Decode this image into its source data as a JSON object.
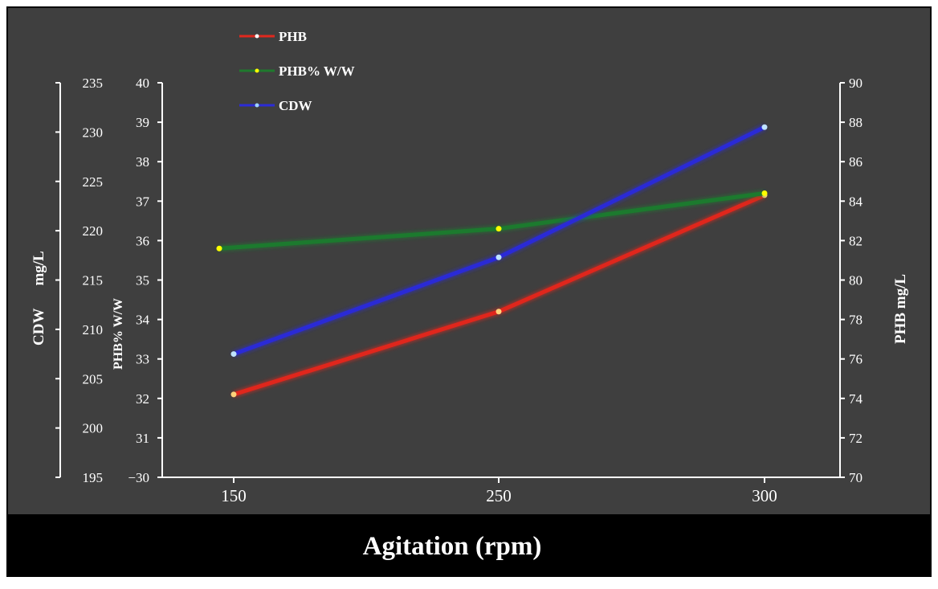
{
  "chart_data": {
    "type": "line",
    "xlabel": "Agitation (rpm)",
    "categories": [
      "150",
      "250",
      "300"
    ],
    "axes": {
      "cdw": {
        "label_parts": [
          "CDW",
          "mg/L"
        ],
        "ylim": [
          195,
          235
        ],
        "ticks": [
          "195",
          "200",
          "205",
          "210",
          "215",
          "220",
          "225",
          "230",
          "235"
        ]
      },
      "phb_ww": {
        "label": "PHB% W/W",
        "ylim": [
          30,
          40
        ],
        "ticks": [
          "−30",
          "31",
          "32",
          "33",
          "34",
          "35",
          "36",
          "37",
          "38",
          "39",
          "40"
        ]
      },
      "phb": {
        "label": "PHB  mg/L",
        "ylim": [
          70,
          90
        ],
        "ticks": [
          "70",
          "72",
          "74",
          "76",
          "78",
          "80",
          "82",
          "84",
          "86",
          "88",
          "90"
        ]
      }
    },
    "series": [
      {
        "name": "PHB",
        "axis": "phb",
        "color": "#e0281e",
        "values": [
          74.2,
          78.4,
          84.3
        ]
      },
      {
        "name": "PHB% W/W",
        "axis": "phb_ww",
        "color": "#1f7a2e",
        "values": [
          35.8,
          36.3,
          37.2
        ]
      },
      {
        "name": "CDW",
        "axis": "cdw",
        "color": "#2c2cd6",
        "values": [
          207.5,
          217.3,
          230.5
        ]
      }
    ],
    "legend": "top-left"
  }
}
